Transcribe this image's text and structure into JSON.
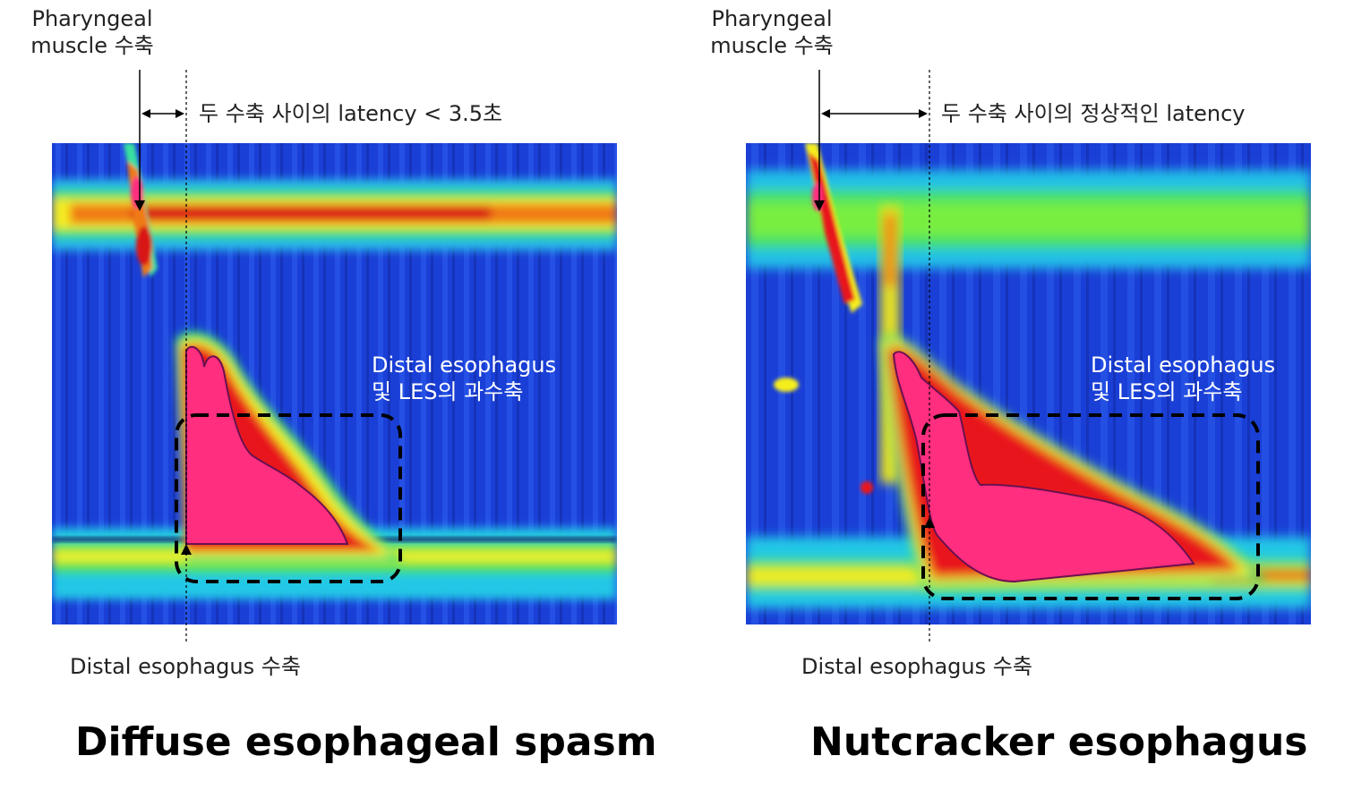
{
  "panels": [
    {
      "id": "des",
      "title": "Diffuse esophageal spasm",
      "pharyngeal_label_1": "Pharyngeal",
      "pharyngeal_label_2": "muscle 수축",
      "latency_label": "두 수축 사이의 latency < 3.5초",
      "distal_label": "Distal esophagus 수축",
      "hyper_label_1": "Distal esophagus",
      "hyper_label_2": "및 LES의 과수축"
    },
    {
      "id": "nut",
      "title": "Nutcracker esophagus",
      "pharyngeal_label_1": "Pharyngeal",
      "pharyngeal_label_2": "muscle 수축",
      "latency_label": "두 수축 사이의 정상적인 latency",
      "distal_label": "Distal esophagus 수축",
      "hyper_label_1": "Distal esophagus",
      "hyper_label_2": "및 LES의 과수축"
    }
  ],
  "colors": {
    "background_blue": "#1a3fd6",
    "hot_pink": "#ff2e7e",
    "red": "#e8141a",
    "yellow": "#f6ee1e",
    "green": "#39e04e",
    "cyan": "#22d8e0",
    "outline": "#000000"
  },
  "icons": [
    "double-arrow-icon",
    "arrow-down-icon",
    "arrow-up-icon"
  ]
}
